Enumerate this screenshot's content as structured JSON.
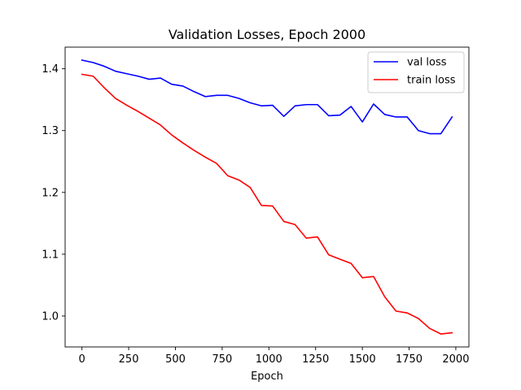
{
  "chart_data": {
    "type": "line",
    "title": "Validation Losses, Epoch 2000",
    "xlabel": "Epoch",
    "ylabel": "",
    "xlim": [
      -90,
      2070
    ],
    "ylim": [
      0.95,
      1.435
    ],
    "xticks": [
      0,
      250,
      500,
      750,
      1000,
      1250,
      1500,
      1750,
      2000
    ],
    "yticks": [
      1.0,
      1.1,
      1.2,
      1.3,
      1.4
    ],
    "xtick_labels": [
      "0",
      "250",
      "500",
      "750",
      "1000",
      "1250",
      "1500",
      "1750",
      "2000"
    ],
    "ytick_labels": [
      "1.0",
      "1.1",
      "1.2",
      "1.3",
      "1.4"
    ],
    "grid": false,
    "legend_position": "top-right",
    "x": [
      0,
      60,
      120,
      180,
      240,
      300,
      360,
      420,
      480,
      540,
      600,
      660,
      720,
      780,
      840,
      900,
      960,
      1020,
      1080,
      1140,
      1200,
      1260,
      1320,
      1380,
      1440,
      1500,
      1560,
      1620,
      1680,
      1740,
      1800,
      1860,
      1920,
      1980
    ],
    "series": [
      {
        "name": "val loss",
        "color": "#0000ff",
        "values": [
          1.414,
          1.41,
          1.404,
          1.396,
          1.392,
          1.388,
          1.383,
          1.385,
          1.375,
          1.372,
          1.363,
          1.355,
          1.357,
          1.357,
          1.352,
          1.345,
          1.34,
          1.341,
          1.323,
          1.34,
          1.342,
          1.342,
          1.324,
          1.325,
          1.339,
          1.314,
          1.343,
          1.326,
          1.322,
          1.322,
          1.3,
          1.295,
          1.295,
          1.322
        ]
      },
      {
        "name": "train loss",
        "color": "#ff0000",
        "values": [
          1.391,
          1.388,
          1.369,
          1.352,
          1.341,
          1.331,
          1.32,
          1.309,
          1.293,
          1.28,
          1.268,
          1.257,
          1.247,
          1.227,
          1.22,
          1.208,
          1.179,
          1.178,
          1.153,
          1.148,
          1.126,
          1.128,
          1.099,
          1.092,
          1.085,
          1.062,
          1.064,
          1.031,
          1.008,
          1.005,
          0.996,
          0.98,
          0.971,
          0.973
        ]
      }
    ]
  }
}
